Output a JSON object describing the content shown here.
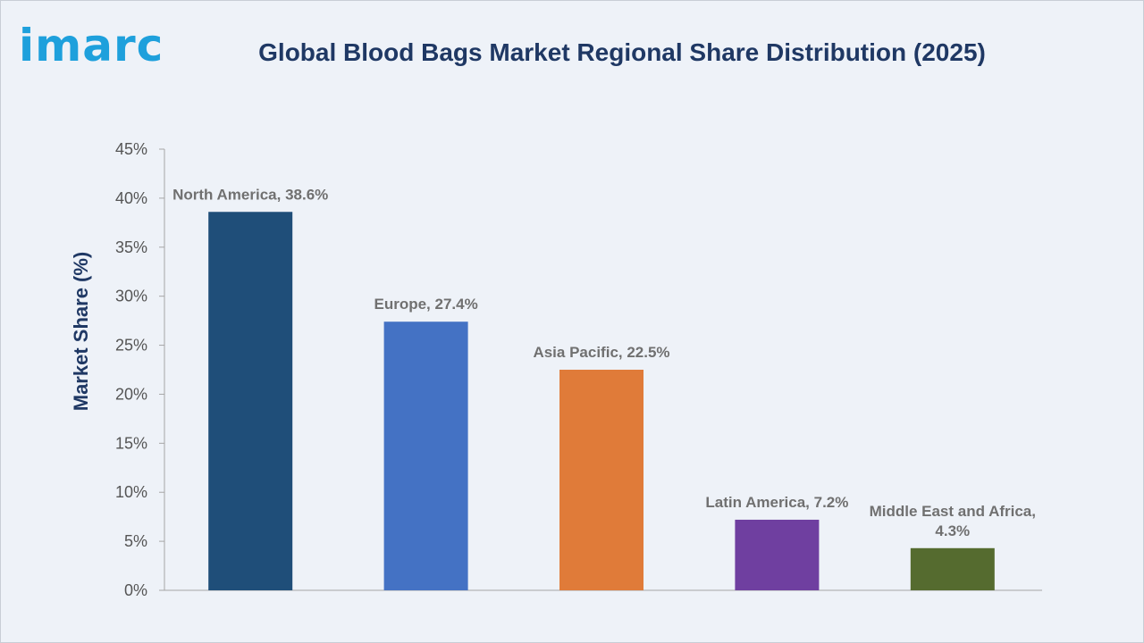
{
  "header": {
    "logo_text": "imarc",
    "title": "Global Blood Bags Market Regional Share Distribution (2025)"
  },
  "chart_data": {
    "type": "bar",
    "title": "Global Blood Bags Market Regional Share Distribution (2025)",
    "xlabel": "",
    "ylabel": "Market Share (%)",
    "ylim": [
      0,
      45
    ],
    "yticks": [
      0,
      5,
      10,
      15,
      20,
      25,
      30,
      35,
      40,
      45
    ],
    "ytick_labels": [
      "0%",
      "5%",
      "10%",
      "15%",
      "20%",
      "25%",
      "30%",
      "35%",
      "40%",
      "45%"
    ],
    "grid": false,
    "categories": [
      "North America",
      "Europe",
      "Asia Pacific",
      "Latin America",
      "Middle East and Africa"
    ],
    "values": [
      38.6,
      27.4,
      22.5,
      7.2,
      4.3
    ],
    "data_labels": [
      [
        "North America, 38.6%"
      ],
      [
        "Europe, 27.4%"
      ],
      [
        "Asia Pacific, 22.5%"
      ],
      [
        "Latin America, 7.2%"
      ],
      [
        "Middle East and Africa,",
        "4.3%"
      ]
    ],
    "colors": [
      "#1f4e79",
      "#4472c4",
      "#e07b39",
      "#6f3fa0",
      "#556b2f"
    ]
  }
}
